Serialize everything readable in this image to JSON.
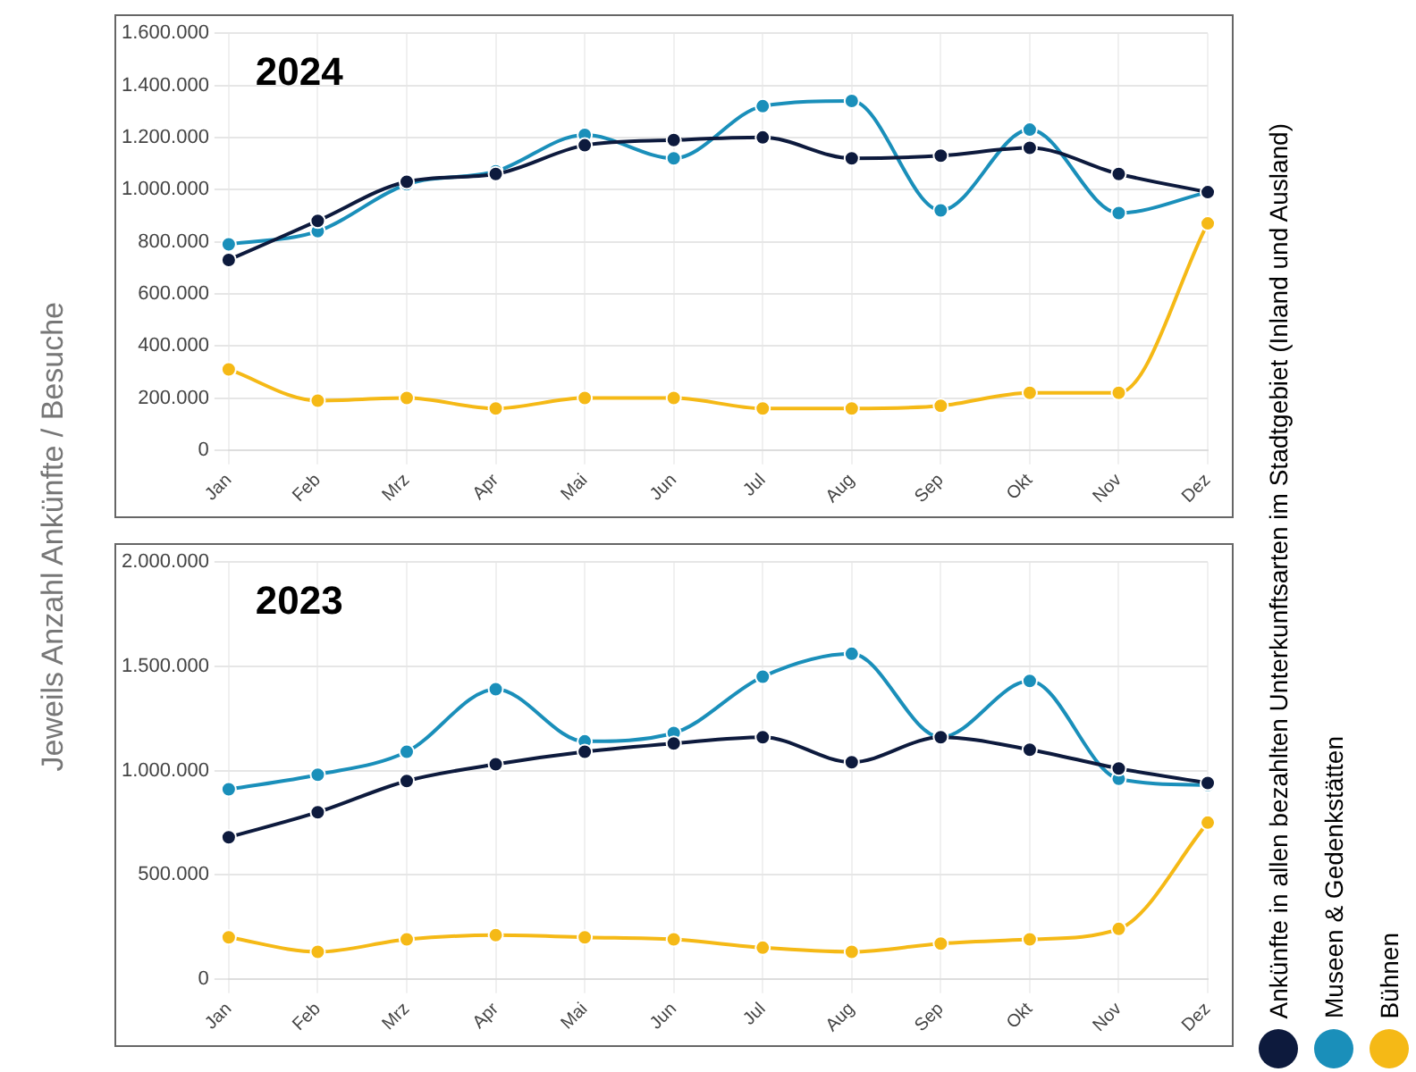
{
  "chart_data": [
    {
      "type": "line",
      "title": "2024",
      "ylabel": "Jeweils Anzahl Ankünfte / Besuche",
      "categories": [
        "Jan",
        "Feb",
        "Mrz",
        "Apr",
        "Mai",
        "Jun",
        "Jul",
        "Aug",
        "Sep",
        "Okt",
        "Nov",
        "Dez"
      ],
      "series": [
        {
          "name": "Ankünfte in allen bezahlten Unterkunftsarten im Stadtgebiet (Inland und Ausland)",
          "color": "#0d1a3d",
          "values": [
            730000,
            880000,
            1030000,
            1060000,
            1170000,
            1190000,
            1200000,
            1120000,
            1130000,
            1160000,
            1060000,
            990000
          ]
        },
        {
          "name": "Museen & Gedenkstätten",
          "color": "#1a8fba",
          "values": [
            790000,
            840000,
            1020000,
            1070000,
            1210000,
            1120000,
            1320000,
            1340000,
            920000,
            1230000,
            910000,
            990000
          ]
        },
        {
          "name": "Bühnen",
          "color": "#f5b916",
          "values": [
            310000,
            190000,
            200000,
            160000,
            200000,
            200000,
            160000,
            160000,
            170000,
            220000,
            220000,
            870000
          ]
        }
      ],
      "ylim": [
        0,
        1600000
      ],
      "yticks": [
        {
          "value": 0,
          "label": "0"
        },
        {
          "value": 200000,
          "label": "200.000"
        },
        {
          "value": 400000,
          "label": "400.000"
        },
        {
          "value": 600000,
          "label": "600.000"
        },
        {
          "value": 800000,
          "label": "800.000"
        },
        {
          "value": 1000000,
          "label": "1.000.000"
        },
        {
          "value": 1200000,
          "label": "1.200.000"
        },
        {
          "value": 1400000,
          "label": "1.400.000"
        },
        {
          "value": 1600000,
          "label": "1.600.000"
        }
      ],
      "grid": true,
      "legend": "right",
      "marker": "circle",
      "line_style": "solid"
    },
    {
      "type": "line",
      "title": "2023",
      "categories": [
        "Jan",
        "Feb",
        "Mrz",
        "Apr",
        "Mai",
        "Jun",
        "Jul",
        "Aug",
        "Sep",
        "Okt",
        "Nov",
        "Dez"
      ],
      "series": [
        {
          "color": "#0d1a3d",
          "values": [
            680000,
            800000,
            950000,
            1030000,
            1090000,
            1130000,
            1160000,
            1040000,
            1160000,
            1100000,
            1010000,
            940000
          ]
        },
        {
          "color": "#1a8fba",
          "values": [
            910000,
            980000,
            1090000,
            1390000,
            1140000,
            1180000,
            1450000,
            1560000,
            1160000,
            1430000,
            960000,
            930000
          ]
        },
        {
          "color": "#f5b916",
          "values": [
            200000,
            130000,
            190000,
            210000,
            200000,
            190000,
            150000,
            130000,
            170000,
            190000,
            240000,
            750000
          ]
        }
      ],
      "ylim": [
        0,
        2000000
      ],
      "yticks": [
        {
          "value": 0,
          "label": "0"
        },
        {
          "value": 500000,
          "label": "500.000"
        },
        {
          "value": 1000000,
          "label": "1.000.000"
        },
        {
          "value": 1500000,
          "label": "1.500.000"
        },
        {
          "value": 2000000,
          "label": "2.000.000"
        }
      ],
      "grid": true,
      "marker": "circle",
      "line_style": "solid"
    }
  ]
}
